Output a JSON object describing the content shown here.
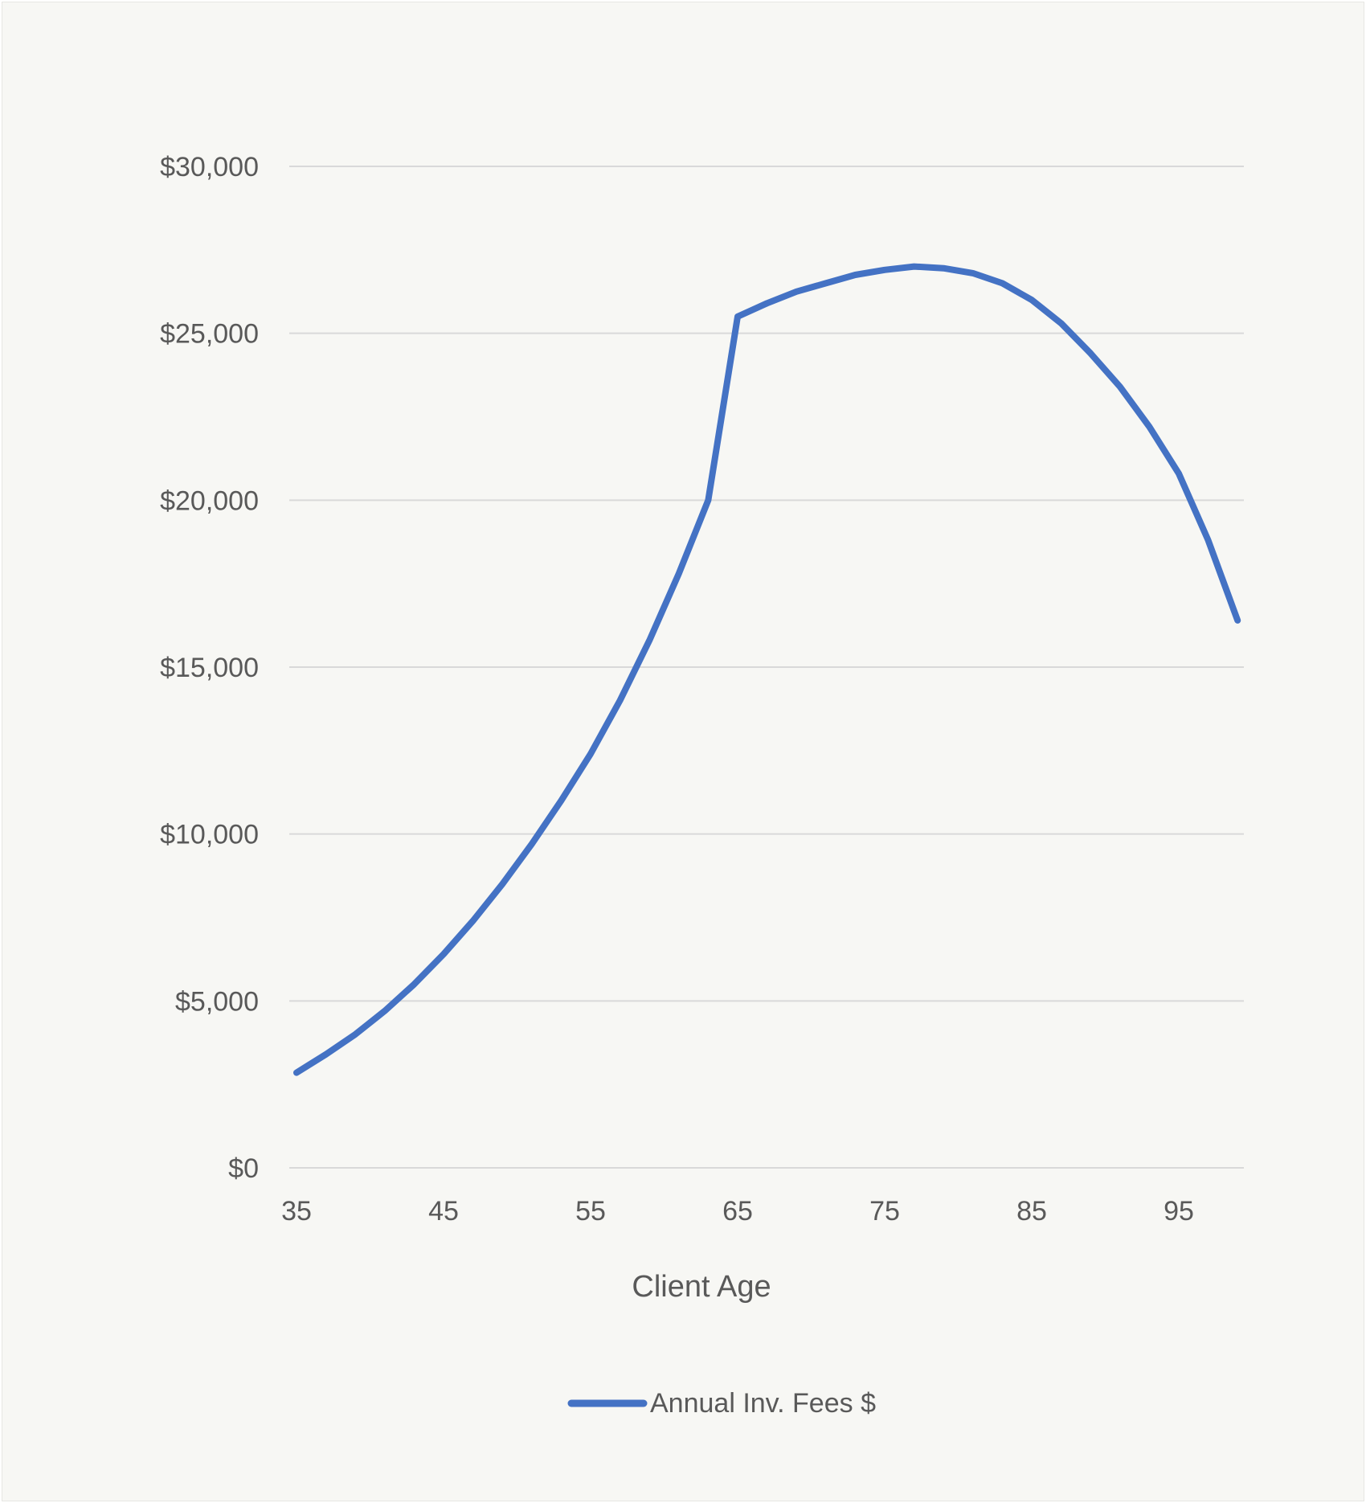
{
  "chart_data": {
    "type": "line",
    "title": "",
    "xlabel": "Client Age",
    "ylabel": "",
    "xlim": [
      35,
      99
    ],
    "ylim": [
      0,
      30000
    ],
    "x_ticks": [
      35,
      45,
      55,
      65,
      75,
      85,
      95
    ],
    "y_ticks": [
      0,
      5000,
      10000,
      15000,
      20000,
      25000,
      30000
    ],
    "y_tick_labels": [
      "$0",
      "$5,000",
      "$10,000",
      "$15,000",
      "$20,000",
      "$25,000",
      "$30,000"
    ],
    "grid": "horizontal",
    "legend": "bottom",
    "colors": {
      "series": "#4472c4",
      "grid": "#d9d9d9",
      "text": "#595959",
      "background": "#f7f7f4"
    },
    "series": [
      {
        "name": "Annual Inv. Fees $",
        "x": [
          35,
          37,
          39,
          41,
          43,
          45,
          47,
          49,
          51,
          53,
          55,
          57,
          59,
          61,
          63,
          65,
          67,
          69,
          71,
          73,
          75,
          77,
          79,
          81,
          83,
          85,
          87,
          89,
          91,
          93,
          95,
          97,
          99
        ],
        "values": [
          2850,
          3400,
          4000,
          4700,
          5500,
          6400,
          7400,
          8500,
          9700,
          11000,
          12400,
          14000,
          15800,
          17800,
          20000,
          25500,
          25900,
          26250,
          26500,
          26750,
          26900,
          27000,
          26950,
          26800,
          26500,
          26000,
          25300,
          24400,
          23400,
          22200,
          20800,
          18800,
          16400
        ]
      }
    ]
  }
}
